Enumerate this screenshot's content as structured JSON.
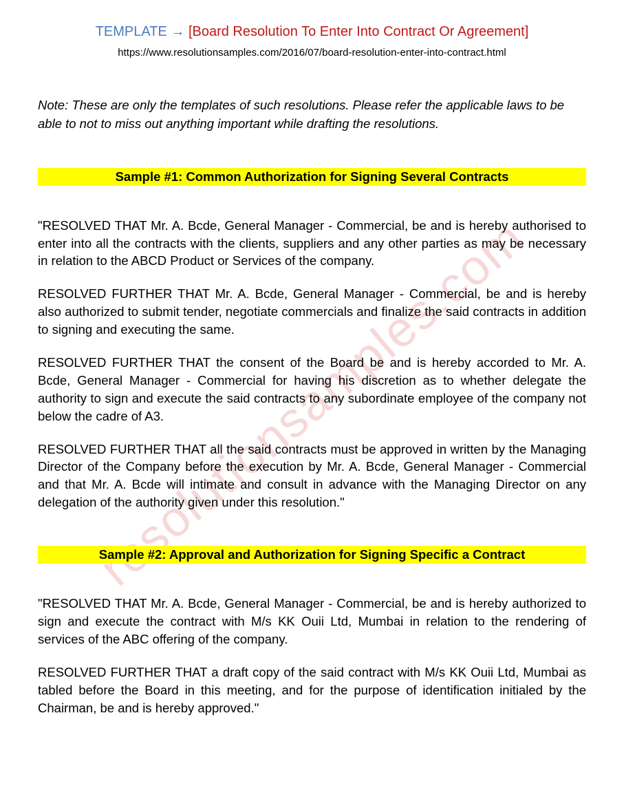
{
  "header": {
    "template_label": "TEMPLATE",
    "arrow": "→",
    "title": "[Board Resolution To Enter Into Contract Or Agreement]"
  },
  "url": "https://www.resolutionsamples.com/2016/07/board-resolution-enter-into-contract.html",
  "note": "Note: These are only the templates of such resolutions. Please refer the applicable laws to be able to not to miss out anything important while drafting the resolutions.",
  "watermark": "resolutionsamples.com",
  "sample1": {
    "heading": "Sample #1: Common Authorization for Signing Several Contracts",
    "p1": "\"RESOLVED THAT Mr. A. Bcde, General Manager - Commercial, be and is hereby authorised to enter into all the contracts with the clients, suppliers and any other parties as may be necessary in relation to the ABCD Product or Services of the company.",
    "p2": "RESOLVED FURTHER THAT Mr. A. Bcde, General Manager - Commercial, be and is hereby also authorized to submit tender, negotiate commercials and finalize the said contracts in addition to signing and executing the same.",
    "p3": "RESOLVED FURTHER THAT the consent of the Board be and is hereby accorded to Mr. A. Bcde, General Manager - Commercial for having his discretion as to whether delegate the authority to sign and execute the said contracts to any subordinate employee of the company not below the cadre of A3.",
    "p4": "RESOLVED FURTHER THAT all the said contracts must be approved in written by the Managing Director of the Company before the execution by Mr. A. Bcde, General Manager - Commercial and that Mr. A. Bcde will intimate and consult in advance with the Managing Director on any delegation of the authority given under this resolution.\""
  },
  "sample2": {
    "heading": "Sample #2: Approval and Authorization for Signing Specific a Contract",
    "p1": "\"RESOLVED THAT Mr. A. Bcde, General Manager - Commercial, be and is hereby authorized to sign and execute the contract with M/s KK Ouii Ltd, Mumbai in relation to the rendering of services of the ABC offering of the company.",
    "p2": "RESOLVED FURTHER THAT a draft copy of the said contract with M/s KK Ouii Ltd, Mumbai as tabled before the Board in this meeting, and for the purpose of identification initialed by the Chairman, be and is hereby approved.\""
  },
  "colors": {
    "template_label": "#4a7bb8",
    "title": "#c01818",
    "highlight": "#ffff00",
    "watermark": "rgba(220, 100, 100, 0.25)",
    "text": "#000000",
    "background": "#ffffff"
  }
}
